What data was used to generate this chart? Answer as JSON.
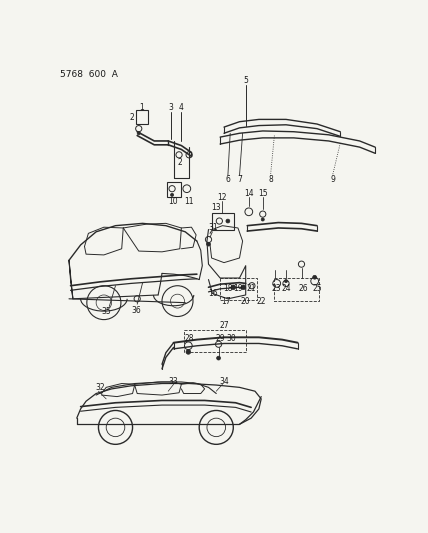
{
  "title": "5768  600  æ",
  "bg_color": "#f5f5f0",
  "line_color": "#2a2a2a",
  "text_color": "#1a1a1a",
  "fig_width": 4.28,
  "fig_height": 5.33,
  "dpi": 100
}
